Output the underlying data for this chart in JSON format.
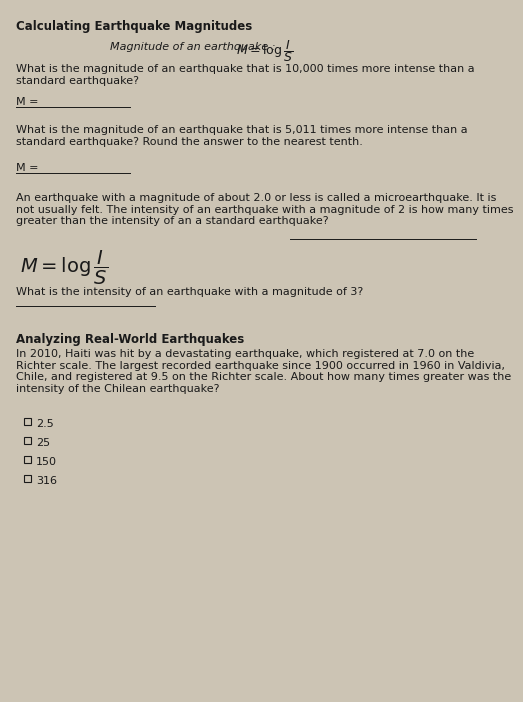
{
  "title": "Calculating Earthquake Magnitudes",
  "magnitude_label": "Magnitude of an earthquake :",
  "q1_text": "What is the magnitude of an earthquake that is 10,000 times more intense than a\nstandard earthquake?",
  "m_label": "M = ",
  "q2_text": "What is the magnitude of an earthquake that is 5,011 times more intense than a\nstandard earthquake? Round the answer to the nearest tenth.",
  "q3_text": "An earthquake with a magnitude of about 2.0 or less is called a microearthquake. It is\nnot usually felt. The intensity of an earthquake with a magnitude of 2 is how many times\ngreater than the intensity of an a standard earthquake?",
  "q4_text": "What is the intensity of an earthquake with a magnitude of 3?",
  "section2_title": "Analyzing Real-World Earthquakes",
  "section2_text": "In 2010, Haiti was hit by a devastating earthquake, which registered at 7.0 on the\nRichter scale. The largest recorded earthquake since 1900 occurred in 1960 in Valdivia,\nChile, and registered at 9.5 on the Richter scale. About how many times greater was the\nintensity of the Chilean earthquake?",
  "choices": [
    "2.5",
    "25",
    "150",
    "316"
  ],
  "bg_color": "#ccc4b4",
  "text_color": "#1a1a1a",
  "title_fontsize": 8.5,
  "body_fontsize": 8.0,
  "formula_small_fontsize": 9.0,
  "formula_large_fontsize": 14.0
}
